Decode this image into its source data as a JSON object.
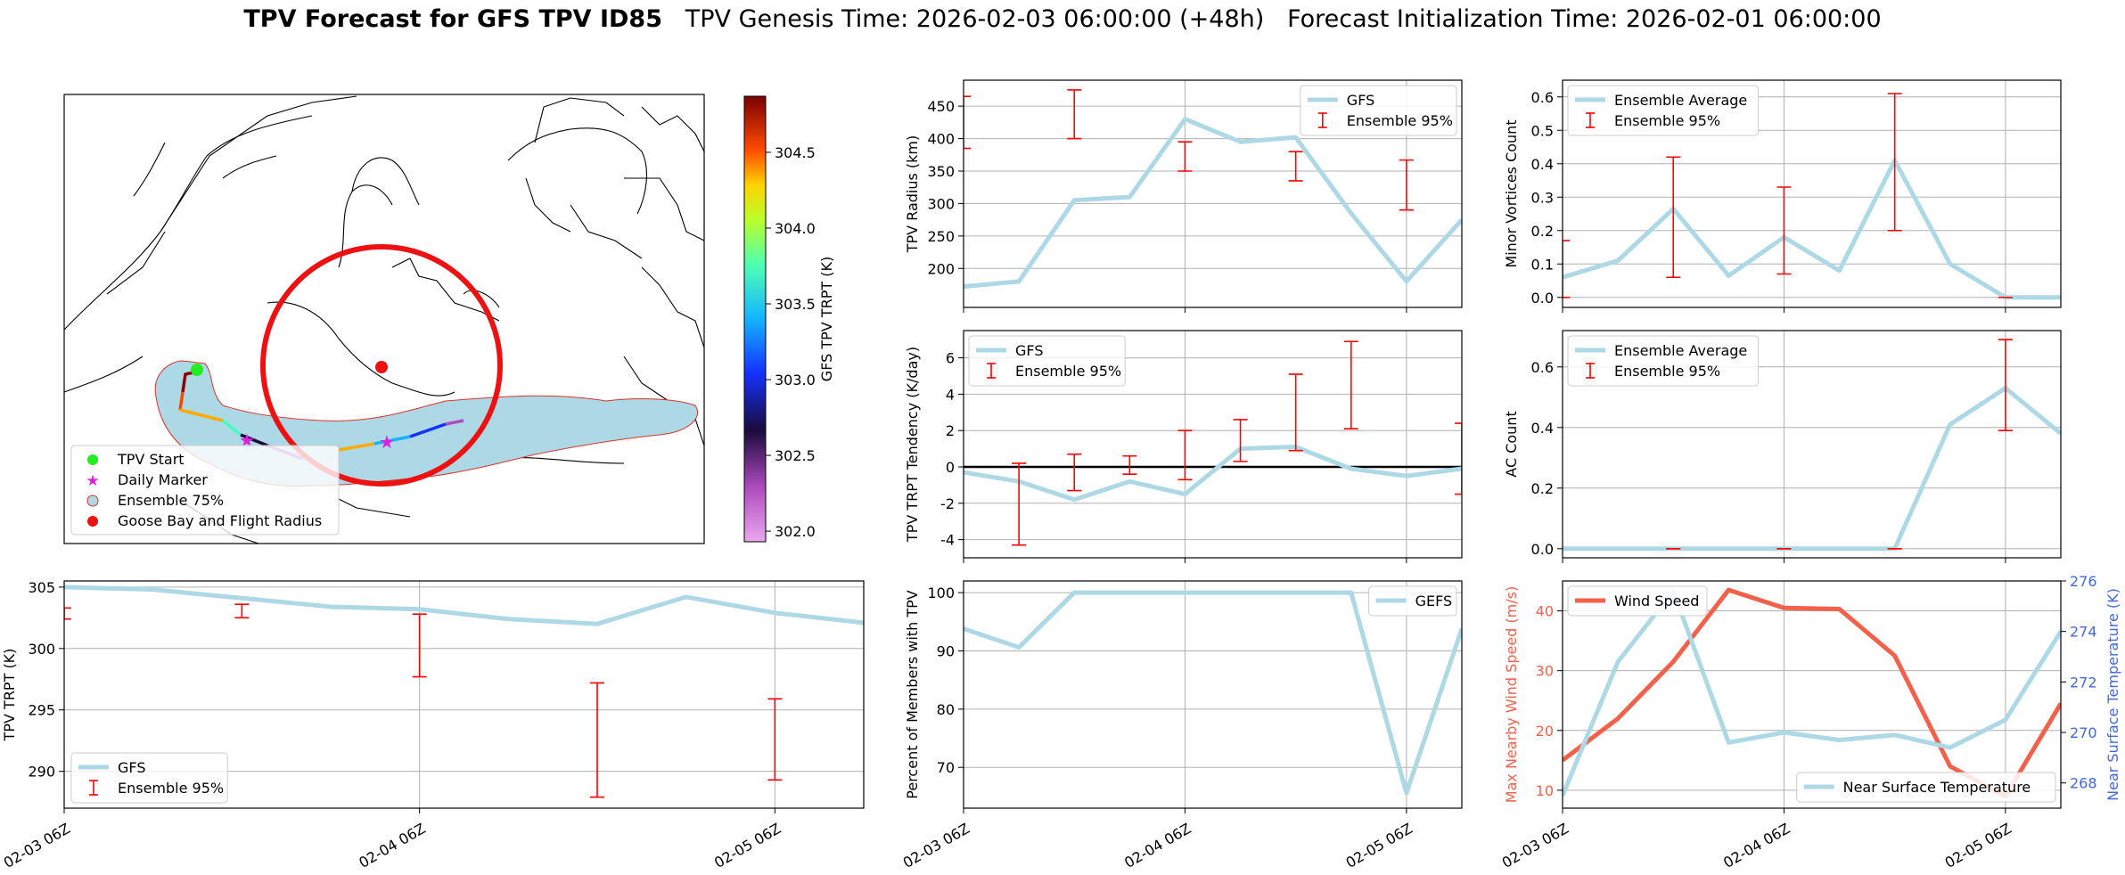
{
  "title": {
    "bold": "TPV Forecast for GFS TPV ID85",
    "genesis": "TPV Genesis Time: 2026-02-03 06:00:00 (+48h)",
    "init": "Forecast Initialization Time: 2026-02-01 06:00:00"
  },
  "colors": {
    "gfs_line": "#add8e6",
    "ensemble_bar": "#ff0000",
    "wind_line": "#f4614a",
    "temp_axis": "#4169e1",
    "grid": "#b0b0b0"
  },
  "map": {
    "colorbar": {
      "label": "GFS TPV TRPT (K)",
      "ticks": [
        "304.5",
        "304.0",
        "303.5",
        "303.0",
        "302.5",
        "302.0"
      ]
    },
    "legend": [
      "TPV Start",
      "Daily Marker",
      "Ensemble 75%",
      "Goose Bay and Flight Radius"
    ]
  },
  "x_ticks": [
    "02-03 06Z",
    "02-04 06Z",
    "02-05 06Z"
  ],
  "chart_data": [
    {
      "id": "radius",
      "type": "line",
      "ylabel": "TPV Radius (km)",
      "ylim": [
        140,
        490
      ],
      "yticks": [
        200,
        250,
        300,
        350,
        400,
        450
      ],
      "x": [
        0,
        6,
        12,
        18,
        24,
        30,
        36,
        42,
        48,
        54
      ],
      "series": [
        {
          "name": "GFS",
          "values": [
            172,
            180,
            305,
            310,
            430,
            395,
            402,
            285,
            180,
            275
          ]
        }
      ],
      "errorbars": {
        "name": "Ensemble 95%",
        "x": [
          0,
          12,
          24,
          36,
          48
        ],
        "low": [
          385,
          400,
          350,
          335,
          290
        ],
        "high": [
          465,
          475,
          395,
          380,
          367
        ]
      },
      "legend": [
        "GFS",
        "Ensemble 95%"
      ]
    },
    {
      "id": "minor",
      "type": "line",
      "ylabel": "Minor Vortices Count",
      "ylim": [
        -0.03,
        0.65
      ],
      "yticks": [
        "0.0",
        "0.1",
        "0.2",
        "0.3",
        "0.4",
        "0.5",
        "0.6"
      ],
      "x": [
        0,
        6,
        12,
        18,
        24,
        30,
        36,
        42,
        48,
        54
      ],
      "series": [
        {
          "name": "Ensemble Average",
          "values": [
            0.06,
            0.11,
            0.265,
            0.065,
            0.18,
            0.08,
            0.41,
            0.1,
            0.0,
            0.0
          ]
        }
      ],
      "errorbars": {
        "name": "Ensemble 95%",
        "x": [
          0,
          12,
          24,
          36,
          48
        ],
        "low": [
          0.0,
          0.06,
          0.07,
          0.2,
          0.0
        ],
        "high": [
          0.17,
          0.42,
          0.33,
          0.61,
          0.0
        ]
      },
      "legend": [
        "Ensemble Average",
        "Ensemble 95%"
      ]
    },
    {
      "id": "tendency",
      "type": "line",
      "ylabel": "TPV TRPT Tendency (K/day)",
      "ylim": [
        -5,
        7.5
      ],
      "yticks": [
        -4,
        -2,
        0,
        2,
        4,
        6
      ],
      "x": [
        0,
        6,
        12,
        18,
        24,
        30,
        36,
        42,
        48,
        54
      ],
      "series": [
        {
          "name": "GFS",
          "values": [
            -0.3,
            -0.8,
            -1.8,
            -0.8,
            -1.5,
            1.0,
            1.1,
            -0.1,
            -0.5,
            -0.1
          ]
        }
      ],
      "errorbars": {
        "name": "Ensemble 95%",
        "x": [
          6,
          12,
          18,
          24,
          30,
          36,
          42,
          54
        ],
        "low": [
          -4.3,
          -1.3,
          -0.4,
          -0.7,
          0.3,
          0.9,
          2.1,
          -1.5
        ],
        "high": [
          0.2,
          0.7,
          0.6,
          2.0,
          2.6,
          5.1,
          6.9,
          2.4
        ]
      },
      "zero_line": true,
      "legend": [
        "GFS",
        "Ensemble 95%"
      ]
    },
    {
      "id": "ac",
      "type": "line",
      "ylabel": "AC Count",
      "ylim": [
        -0.03,
        0.72
      ],
      "yticks": [
        "0.0",
        "0.2",
        "0.4",
        "0.6"
      ],
      "x": [
        0,
        6,
        12,
        18,
        24,
        30,
        36,
        42,
        48,
        54
      ],
      "series": [
        {
          "name": "Ensemble Average",
          "values": [
            0,
            0,
            0,
            0,
            0,
            0,
            0,
            0.41,
            0.53,
            0.38
          ]
        }
      ],
      "errorbars": {
        "name": "Ensemble 95%",
        "x": [
          12,
          24,
          36,
          48
        ],
        "low": [
          0,
          0,
          0,
          0.39
        ],
        "high": [
          0,
          0,
          0,
          0.69
        ]
      },
      "legend": [
        "Ensemble Average",
        "Ensemble 95%"
      ]
    },
    {
      "id": "trpt",
      "type": "line",
      "ylabel": "TPV TRPT (K)",
      "ylim": [
        287,
        305.5
      ],
      "yticks": [
        290,
        295,
        300,
        305
      ],
      "x": [
        0,
        6,
        12,
        18,
        24,
        30,
        36,
        42,
        48,
        54
      ],
      "series": [
        {
          "name": "GFS",
          "values": [
            305.0,
            304.8,
            304.1,
            303.4,
            303.2,
            302.4,
            302.0,
            304.2,
            302.9,
            302.1
          ]
        }
      ],
      "errorbars": {
        "name": "Ensemble 95%",
        "x": [
          0,
          12,
          24,
          36,
          48
        ],
        "low": [
          302.4,
          302.5,
          297.7,
          287.9,
          289.3
        ],
        "high": [
          303.3,
          303.6,
          302.8,
          297.2,
          295.9
        ]
      },
      "legend": [
        "GFS",
        "Ensemble 95%"
      ]
    },
    {
      "id": "percent",
      "type": "line",
      "ylabel": "Percent of Members with TPV",
      "ylim": [
        63,
        102
      ],
      "yticks": [
        70,
        80,
        90,
        100
      ],
      "x": [
        0,
        6,
        12,
        18,
        24,
        30,
        36,
        42,
        48,
        54
      ],
      "series": [
        {
          "name": "GEFS",
          "values": [
            93.8,
            90.6,
            100,
            100,
            100,
            100,
            100,
            100,
            65.6,
            93.8
          ]
        }
      ],
      "legend": [
        "GEFS"
      ]
    },
    {
      "id": "wind",
      "type": "line",
      "ylabel": "Max Nearby Wind Speed (m/s)",
      "ylim": [
        7,
        45
      ],
      "yticks": [
        10,
        20,
        30,
        40
      ],
      "y2label": "Near Surface Temperature (K)",
      "y2lim": [
        267,
        276
      ],
      "y2ticks": [
        268,
        270,
        272,
        274,
        276
      ],
      "x": [
        0,
        6,
        12,
        18,
        24,
        30,
        36,
        42,
        48,
        54
      ],
      "series": [
        {
          "name": "Wind Speed",
          "axis": "left",
          "values": [
            15,
            22,
            31.5,
            43.5,
            40.5,
            40.3,
            32.5,
            14,
            9,
            24.5
          ]
        },
        {
          "name": "Near Surface Temperature",
          "axis": "right",
          "values": [
            267.5,
            272.8,
            275.6,
            269.6,
            270.0,
            269.7,
            269.9,
            269.4,
            270.5,
            274.0
          ]
        }
      ],
      "legend": [
        "Wind Speed",
        "Near Surface Temperature"
      ]
    }
  ]
}
